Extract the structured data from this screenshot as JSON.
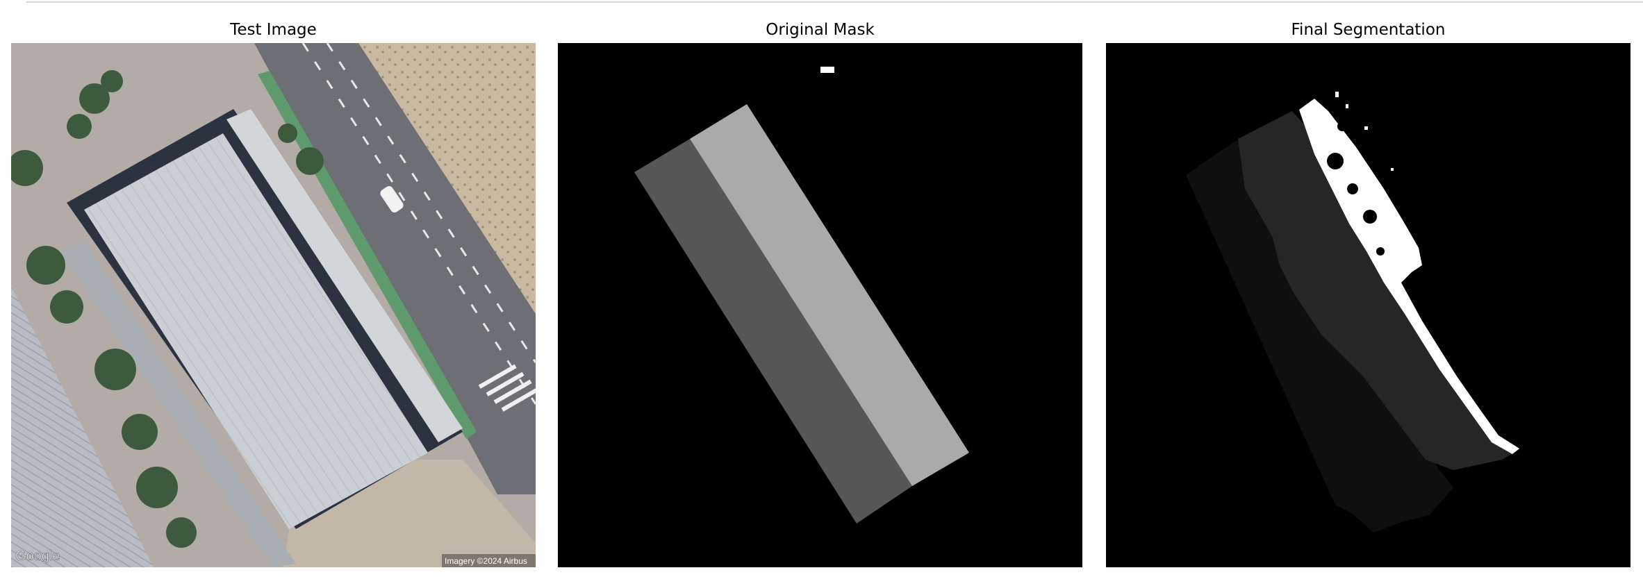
{
  "figure": {
    "panels": [
      {
        "title": "Test Image",
        "kind": "aerial-photo",
        "watermark_left": "Google",
        "watermark_right": "Imagery ©2024 Airbus"
      },
      {
        "title": "Original Mask",
        "kind": "mask",
        "classes": [
          {
            "name": "dark-gray-region",
            "color": "#565656"
          },
          {
            "name": "light-gray-region",
            "color": "#aaaaaa"
          },
          {
            "name": "white-marker",
            "color": "#ffffff"
          }
        ]
      },
      {
        "title": "Final Segmentation",
        "kind": "segmentation",
        "classes": [
          {
            "name": "near-black-region",
            "color": "#0f0f0f"
          },
          {
            "name": "dark-gray-region",
            "color": "#262626"
          },
          {
            "name": "white-region",
            "color": "#ffffff"
          }
        ]
      }
    ],
    "background_color": "#000000"
  }
}
